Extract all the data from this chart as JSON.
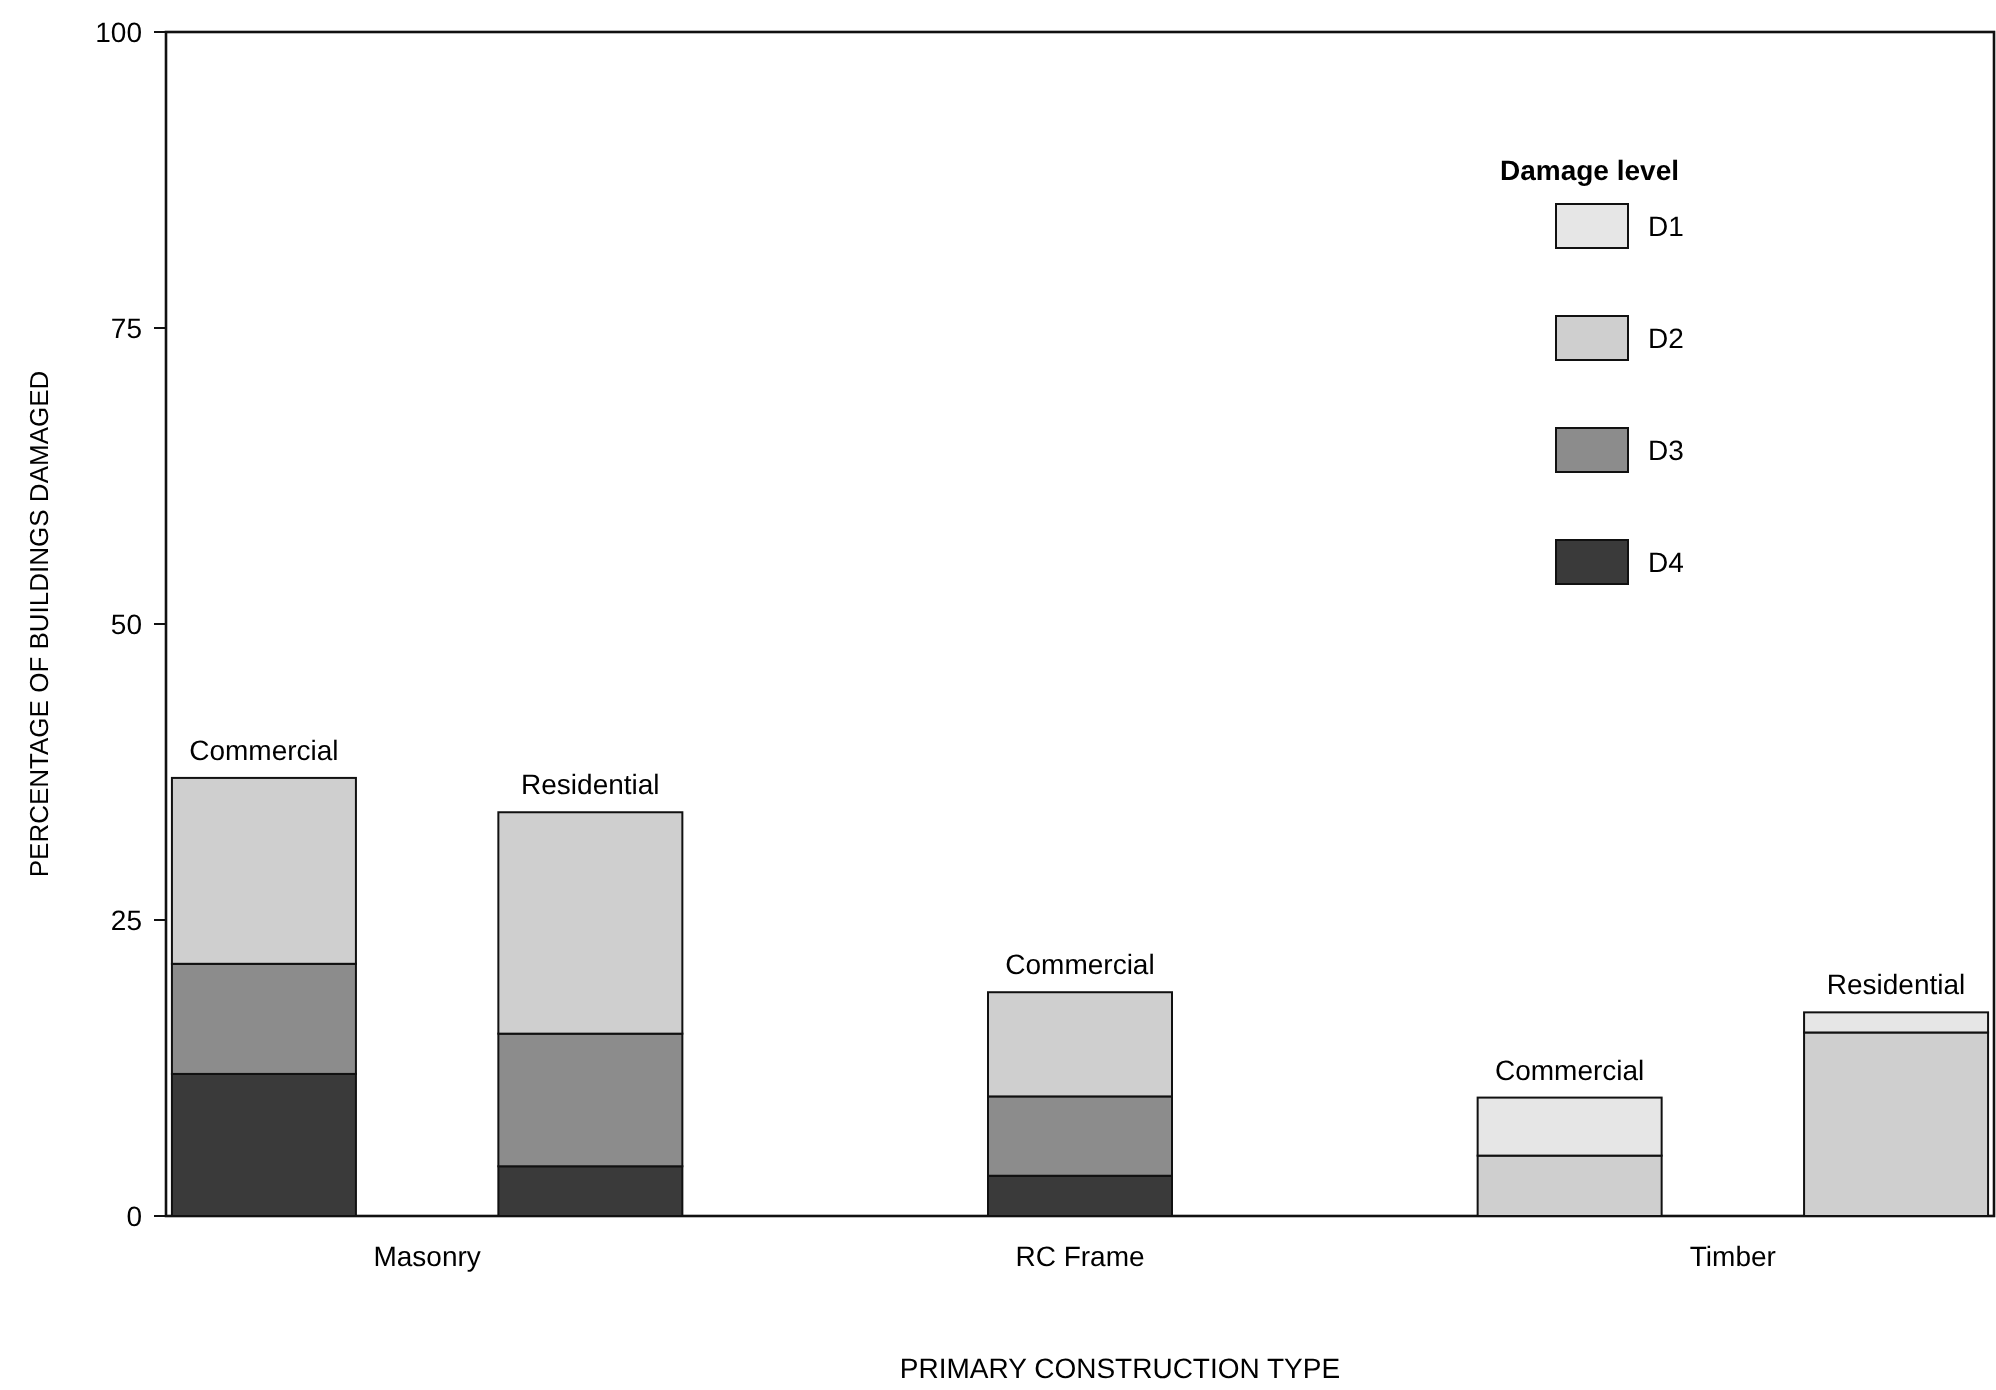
{
  "chart_data": {
    "type": "bar",
    "stacked": true,
    "xlabel": "PRIMARY CONSTRUCTION TYPE",
    "ylabel": "PERCENTAGE OF BUILDINGS DAMAGED",
    "legend_title": "Damage level",
    "legend": "top right",
    "categories": [
      null,
      "Masonry",
      null,
      null,
      null,
      "RC Frame",
      null,
      null,
      null,
      "Timber",
      null
    ],
    "ylim": [
      0,
      100
    ],
    "yticks": [
      0,
      25,
      50,
      75,
      100
    ],
    "series": [
      {
        "name": "D4",
        "color": "#3a3a3a",
        "values": [
          12,
          null,
          4.2,
          null,
          null,
          3.4,
          null,
          null,
          0,
          null,
          0
        ]
      },
      {
        "name": "D3",
        "color": "#8c8c8c",
        "values": [
          9.3,
          null,
          11.2,
          null,
          null,
          6.7,
          null,
          null,
          0,
          null,
          0
        ]
      },
      {
        "name": "D2",
        "color": "#cfcfcf",
        "values": [
          15.7,
          null,
          18.7,
          null,
          null,
          8.8,
          null,
          null,
          5.1,
          null,
          15.5
        ]
      },
      {
        "name": "D1",
        "color": "#e6e6e6",
        "values": [
          0,
          null,
          0,
          null,
          null,
          0,
          null,
          null,
          4.9,
          null,
          1.7
        ]
      }
    ],
    "annotations": [
      {
        "text": "Commercial",
        "y": 37
      },
      {
        "text": "Residential",
        "y": 34.1
      },
      {
        "text": "Commercial",
        "y": 18.9
      },
      {
        "text": "Commercial",
        "y": 10
      },
      {
        "text": "Residential",
        "y": 17.2
      }
    ]
  }
}
